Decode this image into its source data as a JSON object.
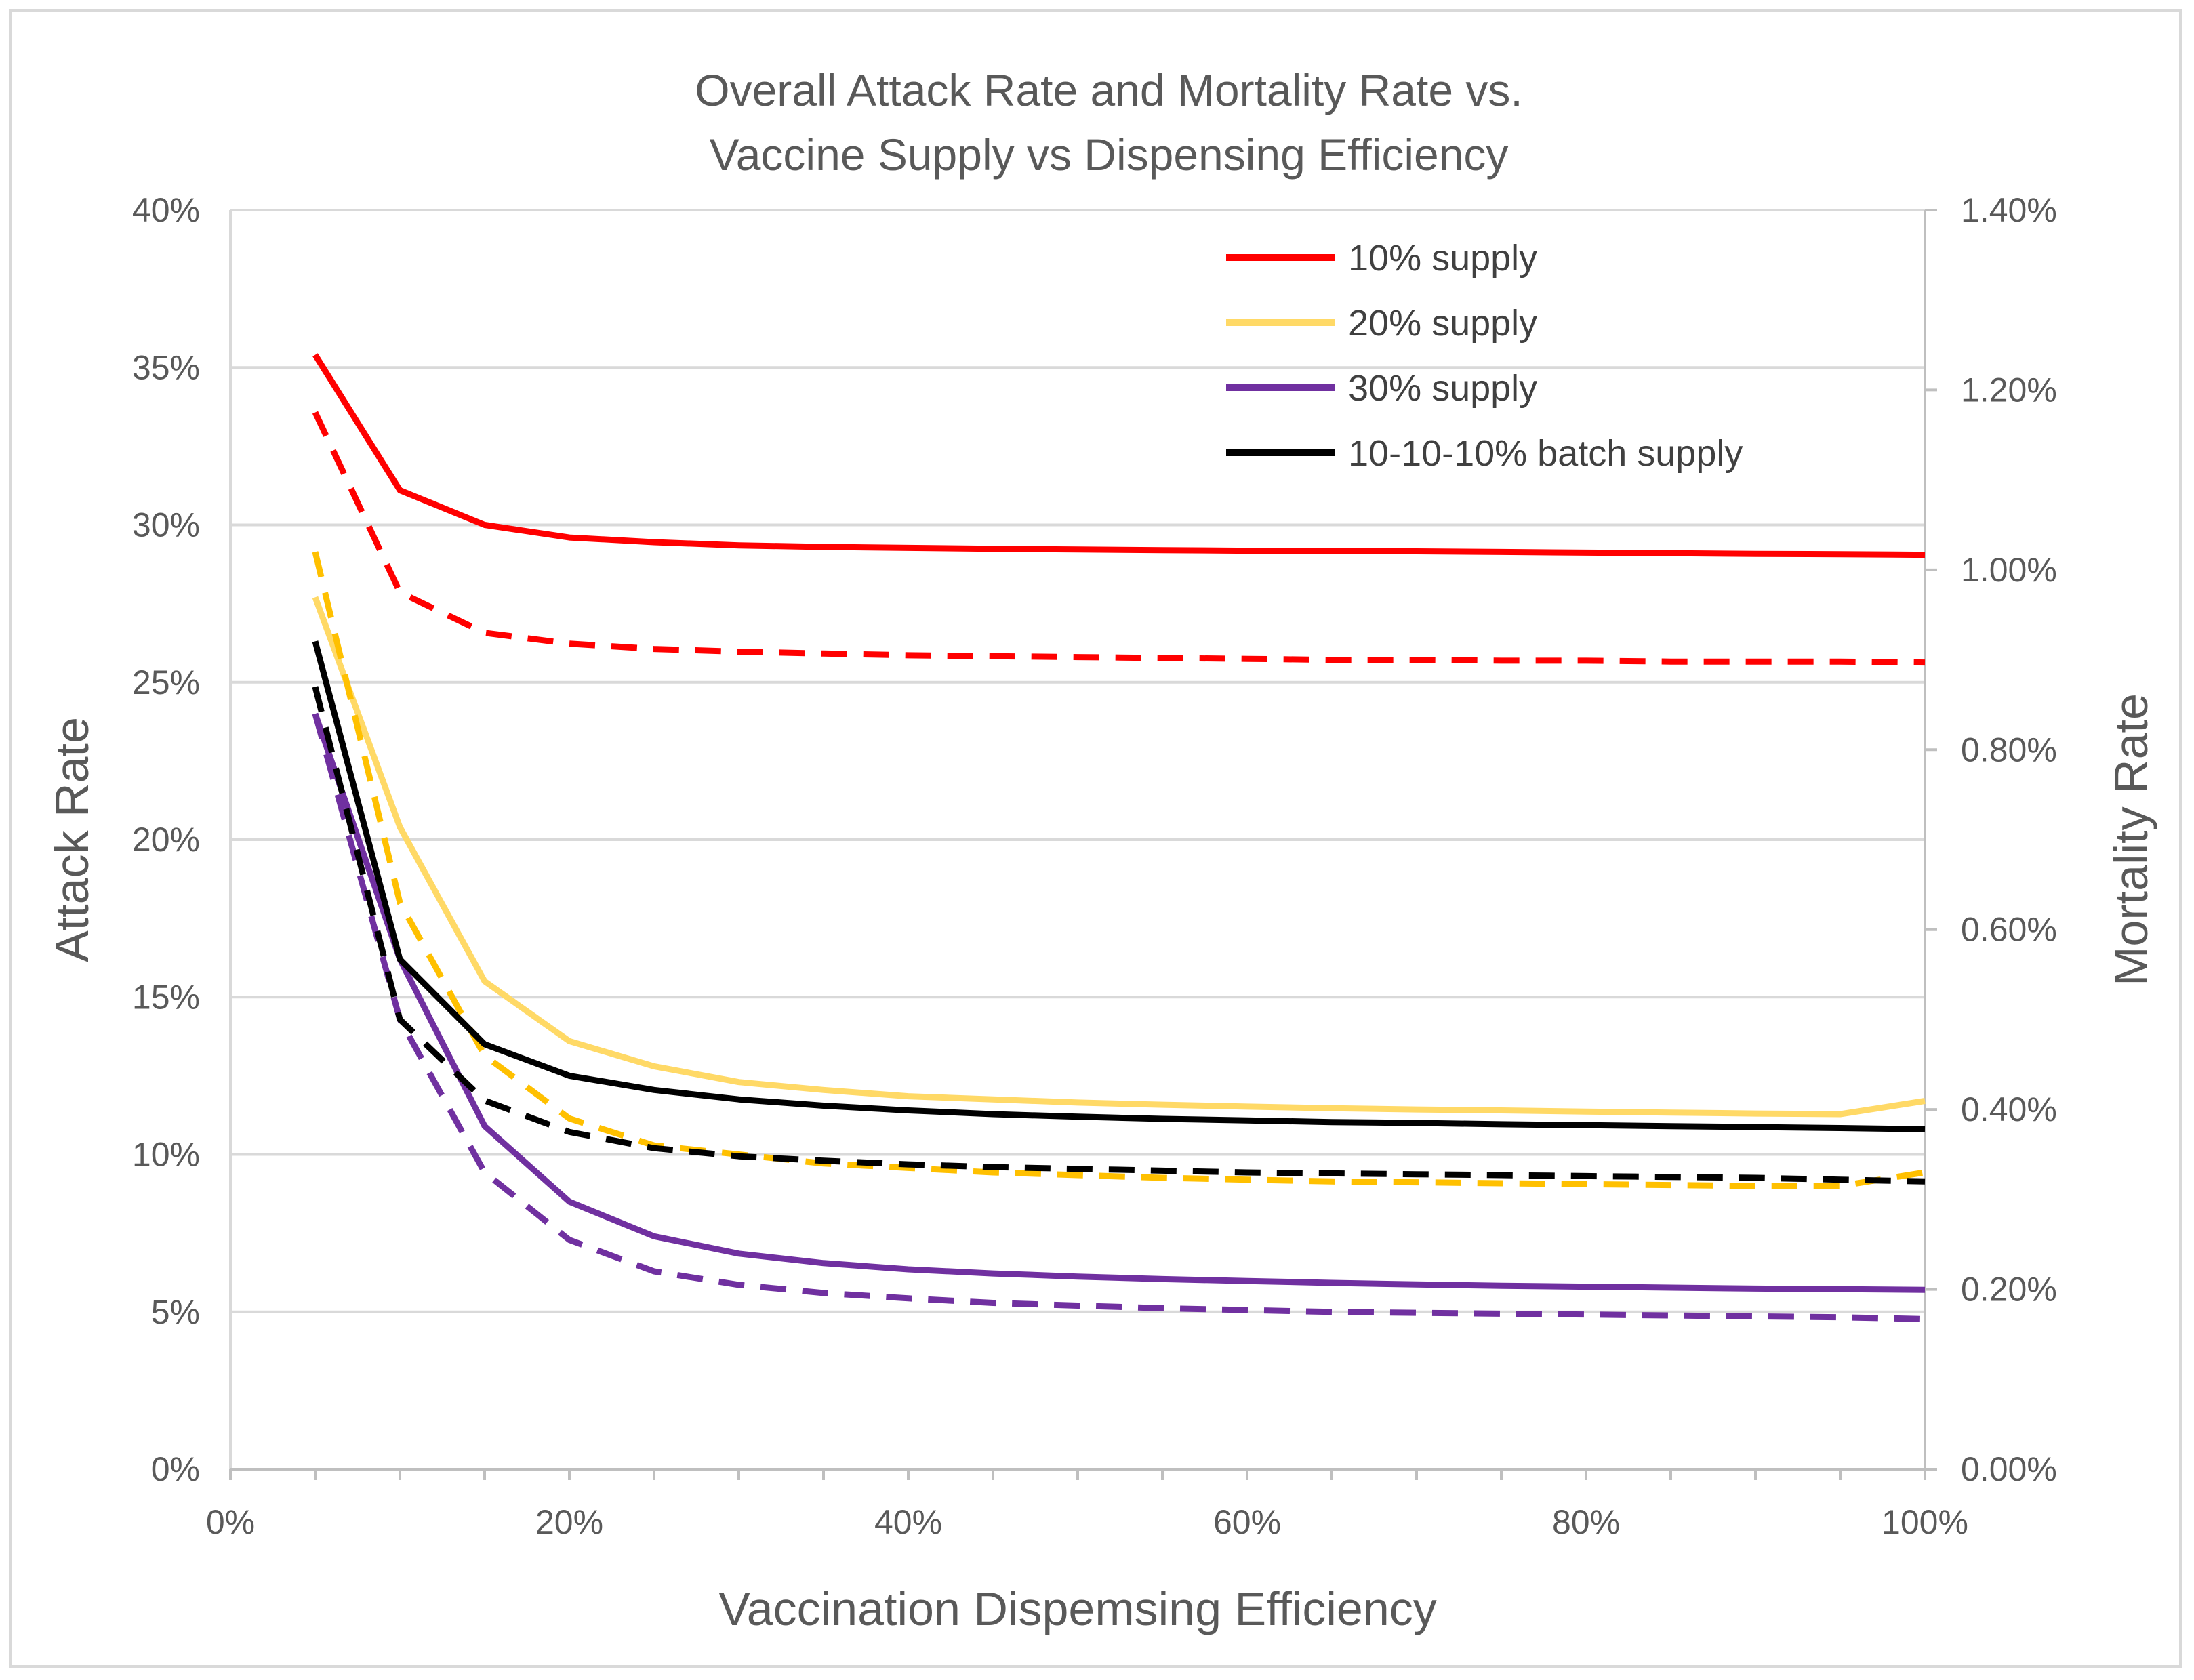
{
  "chart_data": {
    "type": "line",
    "title_lines": [
      "Overall Attack Rate and Mortality Rate vs.",
      "Vaccine Supply vs Dispensing Efficiency"
    ],
    "xlabel": "Vaccination Dispemsing Efficiency",
    "ylabel": "Attack Rate",
    "y2label": "Mortality Rate",
    "xlim": [
      0,
      100
    ],
    "ylim": [
      0,
      40
    ],
    "y2lim": [
      0,
      1.4
    ],
    "x_ticks": [
      "0%",
      "20%",
      "40%",
      "60%",
      "80%",
      "100%"
    ],
    "y_ticks": [
      "0%",
      "5%",
      "10%",
      "15%",
      "20%",
      "25%",
      "30%",
      "35%",
      "40%"
    ],
    "y2_ticks": [
      "0.00%",
      "0.20%",
      "0.40%",
      "0.60%",
      "0.80%",
      "1.00%",
      "1.20%",
      "1.40%"
    ],
    "x": [
      5,
      10,
      15,
      20,
      25,
      30,
      35,
      40,
      45,
      50,
      55,
      60,
      65,
      70,
      75,
      80,
      85,
      90,
      95,
      100
    ],
    "series": [
      {
        "name": "10% supply",
        "color": "#ff0000",
        "axis": "left",
        "style": "solid",
        "values": [
          35.4,
          31.1,
          30.0,
          29.6,
          29.45,
          29.35,
          29.3,
          29.27,
          29.24,
          29.22,
          29.2,
          29.18,
          29.17,
          29.16,
          29.14,
          29.12,
          29.1,
          29.08,
          29.07,
          29.05
        ]
      },
      {
        "name": "10% supply (mortality)",
        "color": "#ff0000",
        "axis": "right",
        "style": "dashed",
        "values": [
          1.175,
          0.975,
          0.93,
          0.918,
          0.912,
          0.909,
          0.907,
          0.905,
          0.904,
          0.903,
          0.902,
          0.901,
          0.9,
          0.9,
          0.899,
          0.899,
          0.898,
          0.898,
          0.898,
          0.897
        ]
      },
      {
        "name": "20% supply",
        "color": "#ffd966",
        "axis": "left",
        "style": "solid",
        "values": [
          27.7,
          20.4,
          15.5,
          13.6,
          12.8,
          12.3,
          12.05,
          11.85,
          11.75,
          11.65,
          11.58,
          11.52,
          11.47,
          11.43,
          11.4,
          11.36,
          11.33,
          11.3,
          11.28,
          11.7
        ]
      },
      {
        "name": "20% supply (mortality)",
        "color": "#ffc000",
        "axis": "right",
        "style": "dashed",
        "values": [
          1.02,
          0.63,
          0.46,
          0.39,
          0.36,
          0.35,
          0.34,
          0.335,
          0.33,
          0.327,
          0.324,
          0.322,
          0.32,
          0.319,
          0.318,
          0.317,
          0.316,
          0.315,
          0.315,
          0.33
        ]
      },
      {
        "name": "30% supply",
        "color": "#7030a0",
        "axis": "left",
        "style": "solid",
        "values": [
          24.0,
          16.2,
          10.9,
          8.5,
          7.4,
          6.85,
          6.55,
          6.35,
          6.22,
          6.12,
          6.04,
          5.98,
          5.92,
          5.87,
          5.83,
          5.8,
          5.77,
          5.74,
          5.72,
          5.7
        ]
      },
      {
        "name": "30% supply (mortality)",
        "color": "#7030a0",
        "axis": "right",
        "style": "dashed",
        "values": [
          0.84,
          0.5,
          0.33,
          0.255,
          0.22,
          0.205,
          0.196,
          0.19,
          0.185,
          0.182,
          0.179,
          0.177,
          0.175,
          0.174,
          0.173,
          0.172,
          0.171,
          0.17,
          0.169,
          0.167
        ]
      },
      {
        "name": "10-10-10% batch supply",
        "color": "#000000",
        "axis": "left",
        "style": "solid",
        "values": [
          26.3,
          16.2,
          13.5,
          12.5,
          12.05,
          11.75,
          11.55,
          11.4,
          11.28,
          11.2,
          11.13,
          11.08,
          11.03,
          11.0,
          10.96,
          10.93,
          10.9,
          10.87,
          10.84,
          10.8
        ]
      },
      {
        "name": "10-10-10% batch supply (mortality)",
        "color": "#000000",
        "axis": "right",
        "style": "dashed",
        "values": [
          0.87,
          0.5,
          0.41,
          0.375,
          0.357,
          0.348,
          0.343,
          0.339,
          0.336,
          0.334,
          0.332,
          0.33,
          0.329,
          0.328,
          0.327,
          0.326,
          0.325,
          0.324,
          0.322,
          0.32
        ]
      }
    ],
    "legend": {
      "position": "top-right",
      "entries": [
        {
          "label": "10% supply",
          "color": "#ff0000"
        },
        {
          "label": "20% supply",
          "color": "#ffd966"
        },
        {
          "label": "30% supply",
          "color": "#7030a0"
        },
        {
          "label": "10-10-10% batch supply",
          "color": "#000000"
        }
      ]
    },
    "grid": true
  }
}
